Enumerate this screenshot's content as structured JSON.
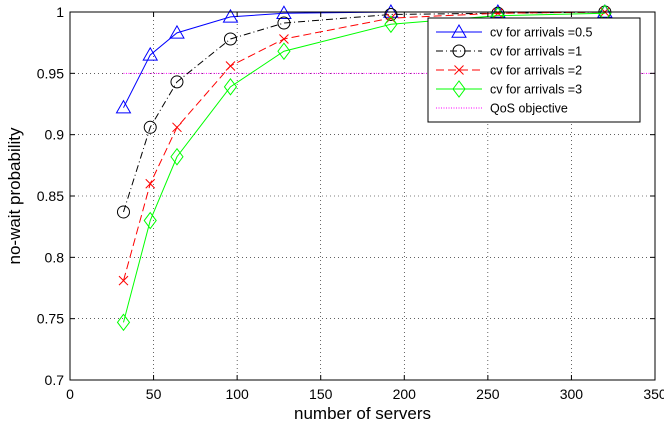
{
  "chart_data": {
    "type": "line",
    "title": "",
    "xlabel": "number of servers",
    "ylabel": "no-wait probability",
    "xlim": [
      0,
      350
    ],
    "ylim": [
      0.7,
      1.0
    ],
    "xticks": [
      0,
      50,
      100,
      150,
      200,
      250,
      300,
      350
    ],
    "xtick_labels": [
      "0",
      "50",
      "100",
      "150",
      "200",
      "250",
      "300",
      "350"
    ],
    "yticks": [
      0.7,
      0.75,
      0.8,
      0.85,
      0.9,
      0.95,
      1.0
    ],
    "ytick_labels": [
      "0.7",
      "0.75",
      "0.8",
      "0.85",
      "0.9",
      "0.95",
      "1"
    ],
    "grid": true,
    "legend_position": "top-right",
    "x": [
      32,
      48,
      64,
      96,
      128,
      192,
      256,
      320
    ],
    "series": [
      {
        "name": "cv for arrivals =0.5",
        "values": [
          0.922,
          0.965,
          0.983,
          0.996,
          0.999,
          1.0,
          1.0,
          1.0
        ],
        "color": "#0000ff",
        "line_style": "solid",
        "marker": "triangle-up"
      },
      {
        "name": "cv for arrivals =1",
        "values": [
          0.837,
          0.906,
          0.943,
          0.978,
          0.991,
          0.998,
          0.999,
          1.0
        ],
        "color": "#000000",
        "line_style": "dash-dot",
        "marker": "circle"
      },
      {
        "name": "cv for arrivals =2",
        "values": [
          0.781,
          0.86,
          0.906,
          0.956,
          0.978,
          0.995,
          0.999,
          1.0
        ],
        "color": "#ff0000",
        "line_style": "dashed",
        "marker": "x"
      },
      {
        "name": "cv for arrivals =3",
        "values": [
          0.747,
          0.83,
          0.882,
          0.939,
          0.968,
          0.99,
          0.997,
          0.999
        ],
        "color": "#00ff00",
        "line_style": "solid",
        "marker": "diamond"
      }
    ],
    "reference_line": {
      "name": "QoS objective",
      "value": 0.95,
      "color": "#ff00ff",
      "line_style": "dotted"
    }
  }
}
